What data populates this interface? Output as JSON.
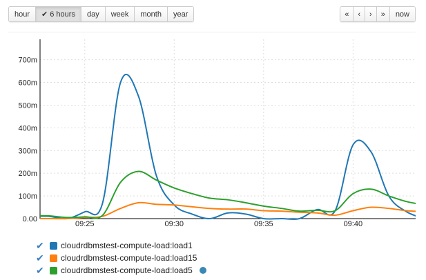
{
  "toolbar": {
    "ranges": [
      {
        "label": "hour",
        "active": false
      },
      {
        "label": "6 hours",
        "active": true
      },
      {
        "label": "day",
        "active": false
      },
      {
        "label": "week",
        "active": false
      },
      {
        "label": "month",
        "active": false
      },
      {
        "label": "year",
        "active": false
      }
    ],
    "nav": [
      {
        "label": "«",
        "icon": "double-chevron-left-icon"
      },
      {
        "label": "‹",
        "icon": "chevron-left-icon"
      },
      {
        "label": "›",
        "icon": "chevron-right-icon"
      },
      {
        "label": "»",
        "icon": "double-chevron-right-icon"
      },
      {
        "label": "now",
        "icon": ""
      }
    ]
  },
  "chart_data": {
    "type": "line",
    "x_range": [
      "09:22:30",
      "09:43:30"
    ],
    "ylim": [
      0,
      0.79
    ],
    "x_ticks": [
      "09:25",
      "09:30",
      "09:35",
      "09:40"
    ],
    "y_ticks": [
      {
        "v": 0,
        "label": "0.00"
      },
      {
        "v": 0.1,
        "label": "100m"
      },
      {
        "v": 0.2,
        "label": "200m"
      },
      {
        "v": 0.3,
        "label": "300m"
      },
      {
        "v": 0.4,
        "label": "400m"
      },
      {
        "v": 0.5,
        "label": "500m"
      },
      {
        "v": 0.6,
        "label": "600m"
      },
      {
        "v": 0.7,
        "label": "700m"
      }
    ],
    "grid": true,
    "x": [
      "09:22",
      "09:23",
      "09:24",
      "09:25",
      "09:26",
      "09:27",
      "09:28",
      "09:29",
      "09:30",
      "09:31",
      "09:32",
      "09:33",
      "09:34",
      "09:35",
      "09:36",
      "09:37",
      "09:38",
      "09:39",
      "09:40",
      "09:41",
      "09:42",
      "09:43",
      "09:44"
    ],
    "series": [
      {
        "name": "cloudrdbmstest-compute-load:load1",
        "color": "#1f77b4",
        "values": [
          0.01,
          0.01,
          0.0,
          0.03,
          0.07,
          0.6,
          0.54,
          0.19,
          0.06,
          0.02,
          0.0,
          0.025,
          0.02,
          0.0,
          0.0,
          0.0,
          0.04,
          0.035,
          0.325,
          0.295,
          0.1,
          0.03,
          0.0
        ]
      },
      {
        "name": "cloudrdbmstest-compute-load:load15",
        "color": "#ff7f0e",
        "values": [
          0.0,
          0.0,
          0.0,
          0.005,
          0.01,
          0.045,
          0.07,
          0.063,
          0.06,
          0.052,
          0.045,
          0.042,
          0.042,
          0.035,
          0.033,
          0.028,
          0.025,
          0.015,
          0.035,
          0.05,
          0.045,
          0.035,
          0.03
        ]
      },
      {
        "name": "cloudrdbmstest-compute-load:load5",
        "color": "#2ca02c",
        "values": [
          0.013,
          0.012,
          0.005,
          0.008,
          0.015,
          0.16,
          0.208,
          0.17,
          0.135,
          0.11,
          0.09,
          0.083,
          0.07,
          0.055,
          0.045,
          0.033,
          0.037,
          0.035,
          0.11,
          0.13,
          0.1,
          0.075,
          0.06
        ]
      }
    ],
    "legend": "bottom-left"
  }
}
